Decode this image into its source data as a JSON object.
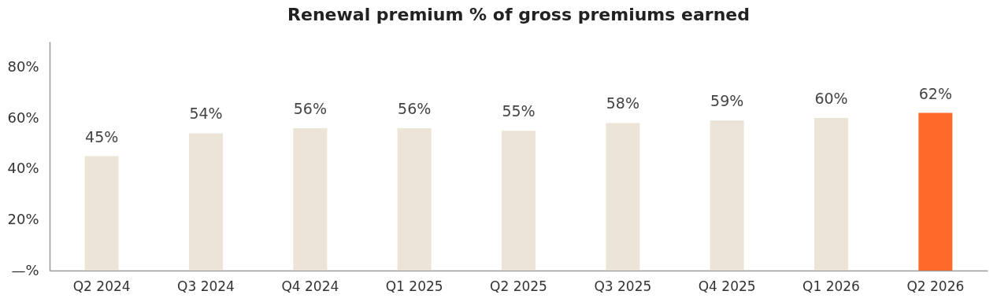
{
  "chart_data": {
    "type": "bar",
    "title": "Renewal premium % of gross premiums earned",
    "categories": [
      "Q2 2024",
      "Q3 2024",
      "Q4 2024",
      "Q1 2025",
      "Q2 2025",
      "Q3 2025",
      "Q4 2025",
      "Q1 2026",
      "Q2 2026"
    ],
    "values": [
      45,
      54,
      56,
      56,
      55,
      58,
      59,
      60,
      62
    ],
    "value_labels": [
      "45%",
      "54%",
      "56%",
      "56%",
      "55%",
      "58%",
      "59%",
      "60%",
      "62%"
    ],
    "colors": [
      "#ede4d8",
      "#ede4d8",
      "#ede4d8",
      "#ede4d8",
      "#ede4d8",
      "#ede4d8",
      "#ede4d8",
      "#ede4d8",
      "#ff6a2b"
    ],
    "ylim": [
      0,
      90
    ],
    "yticks": [
      {
        "value": 0,
        "label": "—%"
      },
      {
        "value": 20,
        "label": "20%"
      },
      {
        "value": 40,
        "label": "40%"
      },
      {
        "value": 60,
        "label": "60%"
      },
      {
        "value": 80,
        "label": "80%"
      }
    ],
    "grid": false,
    "legend": false
  }
}
